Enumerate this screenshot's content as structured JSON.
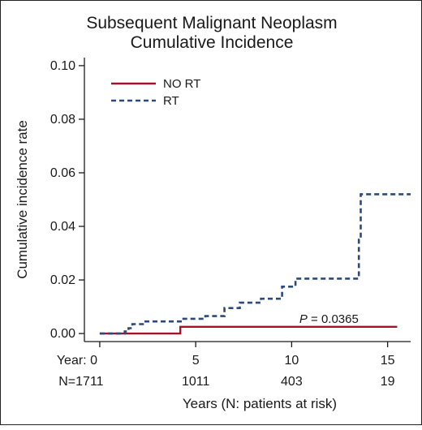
{
  "chart_data": {
    "type": "line",
    "title_lines": [
      "Subsequent Malignant Neoplasm",
      "Cumulative Incidence"
    ],
    "xlabel": "Years (N: patients at risk)",
    "ylabel": "Cumulative incidence rate",
    "xlim": [
      -0.8,
      16.2
    ],
    "ylim": [
      -0.003,
      0.103
    ],
    "yticks": [
      0.0,
      0.02,
      0.04,
      0.06,
      0.08,
      0.1
    ],
    "ytick_labels": [
      "0.00",
      "0.02",
      "0.04",
      "0.06",
      "0.08",
      "0.10"
    ],
    "xticks": [
      0,
      5,
      10,
      15
    ],
    "xtick_labels": [
      "Year: 0",
      "5",
      "10",
      "15"
    ],
    "at_risk_labels": [
      "N=1711",
      "1011",
      "403",
      "19"
    ],
    "legend_position": "top-left",
    "grid": false,
    "annotation": {
      "prefix": "P",
      "text": " = 0.0365",
      "x": 10.4,
      "y": 0.004
    },
    "series": [
      {
        "name": "NO RT",
        "color": "#a3122a",
        "style": "solid",
        "points": [
          [
            0,
            0.0
          ],
          [
            4.2,
            0.0
          ],
          [
            4.2,
            0.0025
          ],
          [
            15.5,
            0.0025
          ]
        ]
      },
      {
        "name": "RT",
        "color": "#2b4a7c",
        "style": "dashed",
        "points": [
          [
            0,
            0.0
          ],
          [
            1.3,
            0.0
          ],
          [
            1.3,
            0.0008
          ],
          [
            1.5,
            0.0008
          ],
          [
            1.5,
            0.002
          ],
          [
            1.7,
            0.002
          ],
          [
            1.7,
            0.0035
          ],
          [
            2.3,
            0.0035
          ],
          [
            2.3,
            0.0045
          ],
          [
            4.3,
            0.0045
          ],
          [
            4.3,
            0.0055
          ],
          [
            5.5,
            0.0055
          ],
          [
            5.5,
            0.0065
          ],
          [
            6.5,
            0.0065
          ],
          [
            6.5,
            0.0095
          ],
          [
            7.3,
            0.0095
          ],
          [
            7.3,
            0.0115
          ],
          [
            8.4,
            0.0115
          ],
          [
            8.4,
            0.013
          ],
          [
            9.5,
            0.013
          ],
          [
            9.5,
            0.0175
          ],
          [
            10.2,
            0.0175
          ],
          [
            10.2,
            0.0205
          ],
          [
            13.5,
            0.0205
          ],
          [
            13.5,
            0.035
          ],
          [
            13.6,
            0.035
          ],
          [
            13.6,
            0.052
          ],
          [
            16.2,
            0.052
          ]
        ]
      }
    ]
  }
}
